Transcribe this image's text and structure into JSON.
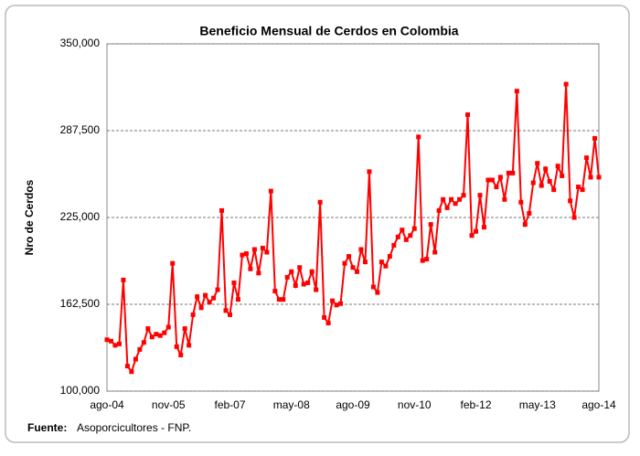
{
  "chart_data": {
    "type": "line",
    "title": "Beneficio Mensual de Cerdos en Colombia",
    "y_label": "Nro de Cerdos",
    "source_label": "Fuente:",
    "source": "Asoporcicultores - FNP.",
    "categories": [
      "ago-04",
      null,
      null,
      null,
      null,
      null,
      null,
      null,
      null,
      null,
      null,
      null,
      null,
      null,
      null,
      "nov-05",
      null,
      null,
      null,
      null,
      null,
      null,
      null,
      null,
      null,
      null,
      null,
      null,
      null,
      null,
      "feb-07",
      null,
      null,
      null,
      null,
      null,
      null,
      null,
      null,
      null,
      null,
      null,
      null,
      null,
      null,
      "may-08",
      null,
      null,
      null,
      null,
      null,
      null,
      null,
      null,
      null,
      null,
      null,
      null,
      null,
      null,
      "ago-09",
      null,
      null,
      null,
      null,
      null,
      null,
      null,
      null,
      null,
      null,
      null,
      null,
      null,
      null,
      "nov-10",
      null,
      null,
      null,
      null,
      null,
      null,
      null,
      null,
      null,
      null,
      null,
      null,
      null,
      null,
      "feb-12",
      null,
      null,
      null,
      null,
      null,
      null,
      null,
      null,
      null,
      null,
      null,
      null,
      null,
      null,
      "may-13",
      null,
      null,
      null,
      null,
      null,
      null,
      null,
      null,
      null,
      null,
      null,
      null,
      null,
      null,
      "ago-14"
    ],
    "series": [
      {
        "color": "#ff0000",
        "values": [
          137000,
          136000,
          133000,
          134000,
          180000,
          118000,
          114000,
          123000,
          130000,
          135000,
          145000,
          139000,
          141000,
          140000,
          142000,
          146000,
          192000,
          132000,
          126000,
          145000,
          133000,
          155000,
          168000,
          160000,
          169000,
          164000,
          167000,
          173000,
          230000,
          158000,
          155000,
          178000,
          166000,
          198000,
          199000,
          188000,
          202000,
          185000,
          203000,
          200000,
          244000,
          172000,
          166000,
          166000,
          182000,
          186000,
          176000,
          189000,
          177000,
          178000,
          186000,
          173000,
          236000,
          153000,
          149000,
          165000,
          162000,
          163000,
          192000,
          197000,
          189000,
          186000,
          202000,
          193000,
          258000,
          175000,
          171000,
          193000,
          190000,
          197000,
          205000,
          211000,
          216000,
          209000,
          212000,
          217000,
          283000,
          194000,
          195000,
          220000,
          200000,
          230000,
          238000,
          232000,
          238000,
          235000,
          238000,
          241000,
          299000,
          212000,
          215000,
          241000,
          218000,
          252000,
          252000,
          247000,
          254000,
          238000,
          257000,
          257000,
          316000,
          236000,
          220000,
          228000,
          250000,
          264000,
          248000,
          260000,
          251000,
          245000,
          262000,
          255000,
          321000,
          237000,
          225000,
          247000,
          245000,
          268000,
          254000,
          282000,
          254000
        ]
      }
    ],
    "ylim": [
      100000,
      350000
    ],
    "yticks": [
      {
        "value": 100000,
        "label": "100,000"
      },
      {
        "value": 162500,
        "label": "162,500"
      },
      {
        "value": 225000,
        "label": "225,000"
      },
      {
        "value": 287500,
        "label": "287,500"
      },
      {
        "value": 350000,
        "label": "350,000"
      }
    ],
    "grid": true
  }
}
